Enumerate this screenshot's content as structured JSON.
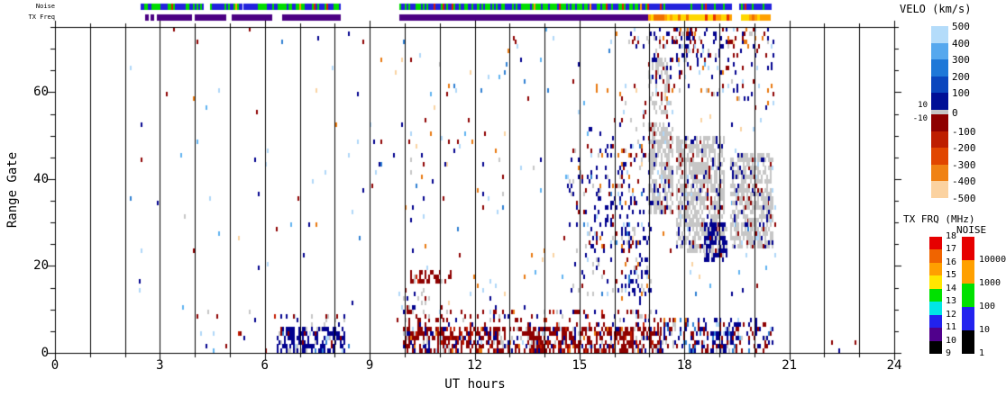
{
  "labels": {
    "noise_bar": "Noise",
    "txfreq_bar": "TX Freq",
    "y_axis": "Range Gate",
    "x_axis": "UT hours"
  },
  "chart_data": {
    "type": "heatmap",
    "xlabel": "UT hours",
    "ylabel": "Range Gate",
    "xlim": [
      0,
      24
    ],
    "ylim": [
      0,
      75
    ],
    "x_tick_values": [
      0,
      3,
      6,
      9,
      12,
      15,
      18,
      21,
      24
    ],
    "x_tick_labels": [
      "0",
      "3",
      "6",
      "9",
      "12",
      "15",
      "18",
      "21",
      "24"
    ],
    "x_minor_tick_every_hours": 1,
    "y_tick_values": [
      0,
      20,
      40,
      60
    ],
    "y_tick_labels": [
      "0",
      "20",
      "40",
      "60"
    ],
    "y_minor_tick_every_gates": 5,
    "vertical_lines_hours": [
      1,
      2,
      3,
      4,
      5,
      6,
      7,
      8,
      9,
      10,
      11,
      12,
      13,
      14,
      15,
      16,
      17,
      18,
      19,
      20,
      21,
      22,
      23
    ],
    "seed": 1337,
    "cell_colors": {
      "navy": "#00008E",
      "darkred": "#8E0000",
      "red": "#C41C00",
      "gray": "#C6C6C6",
      "lightblue": "#AFD7F8",
      "medblue": "#2E7FD2",
      "skyblue": "#5FB2F0",
      "orange": "#E8780F",
      "peach": "#FAD2A0"
    },
    "palettes": {
      "bg": [
        [
          "lightblue",
          0.22
        ],
        [
          "navy",
          0.14
        ],
        [
          "darkred",
          0.2
        ],
        [
          "medblue",
          0.12
        ],
        [
          "skyblue",
          0.08
        ],
        [
          "orange",
          0.1
        ],
        [
          "peach",
          0.09
        ],
        [
          "gray",
          0.05
        ]
      ],
      "navyDense": [
        [
          "navy",
          0.74
        ],
        [
          "darkred",
          0.08
        ],
        [
          "gray",
          0.1
        ],
        [
          "medblue",
          0.04
        ],
        [
          "lightblue",
          0.04
        ]
      ],
      "navyFringe": [
        [
          "navy",
          0.5
        ],
        [
          "gray",
          0.28
        ],
        [
          "darkred",
          0.22
        ]
      ],
      "redDense": [
        [
          "darkred",
          0.64
        ],
        [
          "navy",
          0.12
        ],
        [
          "red",
          0.09
        ],
        [
          "gray",
          0.1
        ],
        [
          "orange",
          0.03
        ],
        [
          "lightblue",
          0.02
        ]
      ],
      "redFringe": [
        [
          "darkred",
          0.52
        ],
        [
          "navy",
          0.18
        ],
        [
          "gray",
          0.16
        ],
        [
          "red",
          0.07
        ],
        [
          "orange",
          0.04
        ],
        [
          "lightblue",
          0.03
        ]
      ],
      "mixBottom": [
        [
          "navy",
          0.36
        ],
        [
          "darkred",
          0.36
        ],
        [
          "gray",
          0.12
        ],
        [
          "lightblue",
          0.06
        ],
        [
          "medblue",
          0.05
        ],
        [
          "orange",
          0.03
        ],
        [
          "skyblue",
          0.02
        ]
      ],
      "redStreak": [
        [
          "darkred",
          0.78
        ],
        [
          "red",
          0.12
        ],
        [
          "gray",
          0.1
        ]
      ],
      "grayRed": [
        [
          "gray",
          0.5
        ],
        [
          "darkred",
          0.33
        ],
        [
          "navy",
          0.17
        ]
      ],
      "midScatter": [
        [
          "navy",
          0.52
        ],
        [
          "darkred",
          0.17
        ],
        [
          "gray",
          0.17
        ],
        [
          "orange",
          0.05
        ],
        [
          "lightblue",
          0.04
        ],
        [
          "medblue",
          0.05
        ]
      ],
      "grayBlob": [
        [
          "gray",
          0.82
        ],
        [
          "navy",
          0.1
        ],
        [
          "darkred",
          0.06
        ],
        [
          "lightblue",
          0.02
        ]
      ],
      "navyBlob": [
        [
          "navy",
          0.84
        ],
        [
          "gray",
          0.08
        ],
        [
          "darkred",
          0.05
        ],
        [
          "medblue",
          0.03
        ]
      ],
      "topSpecks": [
        [
          "navy",
          0.4
        ],
        [
          "darkred",
          0.28
        ],
        [
          "gray",
          0.14
        ],
        [
          "orange",
          0.1
        ],
        [
          "lightblue",
          0.08
        ]
      ]
    },
    "regions": [
      [
        2.1,
        9.9,
        0,
        75,
        0.006,
        "bg"
      ],
      [
        9.9,
        20.6,
        10,
        75,
        0.014,
        "bg"
      ],
      [
        20.6,
        23.4,
        0,
        3,
        0.02,
        "mixBottom"
      ],
      [
        4.3,
        6.3,
        0,
        10,
        0.05,
        "redFringe"
      ],
      [
        6.35,
        8.3,
        0,
        6,
        0.55,
        "navyDense"
      ],
      [
        6.35,
        8.3,
        6,
        9,
        0.14,
        "navyFringe"
      ],
      [
        9.95,
        17.3,
        0,
        6,
        0.62,
        "redDense"
      ],
      [
        9.95,
        17.3,
        6,
        10,
        0.22,
        "redFringe"
      ],
      [
        17.3,
        20.55,
        0,
        8,
        0.36,
        "mixBottom"
      ],
      [
        18.8,
        19.4,
        0,
        6,
        0.45,
        "navyDense"
      ],
      [
        9.95,
        10.6,
        9,
        15,
        0.25,
        "grayRed"
      ],
      [
        10.1,
        11.4,
        16,
        19,
        0.42,
        "redStreak"
      ],
      [
        10.0,
        11.6,
        25,
        46,
        0.03,
        "midScatter"
      ],
      [
        14.7,
        17.05,
        13,
        48,
        0.09,
        "midScatter"
      ],
      [
        15.3,
        16.7,
        20,
        42,
        0.13,
        "midScatter"
      ],
      [
        16.2,
        17.05,
        11,
        30,
        0.2,
        "midScatter"
      ],
      [
        15.2,
        16.9,
        44,
        62,
        0.05,
        "topSpecks"
      ],
      [
        16.95,
        17.65,
        32,
        53,
        0.7,
        "grayBlob"
      ],
      [
        16.95,
        17.6,
        55,
        68,
        0.38,
        "grayBlob"
      ],
      [
        17.75,
        19.15,
        23,
        50,
        0.66,
        "grayBlob"
      ],
      [
        19.3,
        20.55,
        24,
        46,
        0.68,
        "grayBlob"
      ],
      [
        18.55,
        19.2,
        21,
        30,
        0.55,
        "navyBlob"
      ],
      [
        16.9,
        20.55,
        58,
        75,
        0.1,
        "topSpecks"
      ],
      [
        16.4,
        20.2,
        70,
        75,
        0.2,
        "topSpecks"
      ],
      [
        17.75,
        18.35,
        66,
        75,
        0.3,
        "topSpecks"
      ]
    ]
  },
  "noise_strip": {
    "colors": {
      "green": "#00DC00",
      "blue": "#2222DC",
      "red": "#DC1E00",
      "orange": "#FF9B00",
      "yellow": "#FFE100"
    },
    "palettes": {
      "nbL": [
        [
          "blue",
          0.5
        ],
        [
          "green",
          0.38
        ],
        [
          "red",
          0.05
        ],
        [
          "orange",
          0.04
        ],
        [
          "yellow",
          0.03
        ]
      ],
      "nbG": [
        [
          "green",
          0.58
        ],
        [
          "blue",
          0.36
        ],
        [
          "red",
          0.03
        ],
        [
          "orange",
          0.03
        ]
      ],
      "nbB": [
        [
          "blue",
          0.78
        ],
        [
          "green",
          0.16
        ],
        [
          "orange",
          0.03
        ],
        [
          "red",
          0.03
        ]
      ]
    },
    "segments": [
      [
        156,
        226,
        "nbL"
      ],
      [
        233,
        268,
        "nbL"
      ],
      [
        270,
        378,
        "nbL"
      ],
      [
        443,
        530,
        "nbL"
      ],
      [
        530,
        718,
        "nbG"
      ],
      [
        718,
        812,
        "nbB"
      ],
      [
        820,
        855,
        "nbB"
      ]
    ]
  },
  "txfreq_strip": {
    "purple": "#4B0082",
    "purple_segments": [
      [
        161,
        165
      ],
      [
        167,
        171
      ],
      [
        174,
        213
      ],
      [
        216,
        251
      ],
      [
        257,
        302
      ],
      [
        313,
        378
      ],
      [
        443,
        719
      ]
    ],
    "mix_colors": {
      "yellow": "#FFD700",
      "orange": "#FFA000",
      "orange2": "#F07000",
      "red": "#E63000"
    },
    "mix_palette": [
      [
        "yellow",
        0.42
      ],
      [
        "orange",
        0.34
      ],
      [
        "orange2",
        0.16
      ],
      [
        "red",
        0.08
      ]
    ],
    "mix_segments": [
      [
        719,
        812
      ],
      [
        822,
        855
      ]
    ]
  },
  "velo_bar": {
    "title": "VELO (km/s)",
    "labels_right": [
      "500",
      "400",
      "300",
      "200",
      "100",
      "0",
      "-100",
      "-200",
      "-300",
      "-400",
      "-500"
    ],
    "labels_left": [
      "10",
      "-10"
    ],
    "colors_top": [
      "#B4DCFA",
      "#56A8EE",
      "#1E78D8",
      "#0A46BE",
      "#000F96"
    ],
    "gray": "#C6C6C6",
    "colors_bottom": [
      "#8E0000",
      "#BE1E00",
      "#E14600",
      "#F08214",
      "#FBD2A0"
    ]
  },
  "txfrq_bar": {
    "title": "TX FRQ (MHz)",
    "labels": [
      "18",
      "17",
      "16",
      "15",
      "14",
      "13",
      "12",
      "11",
      "10",
      "9"
    ],
    "colors": [
      "#E60000",
      "#F06400",
      "#FFA000",
      "#FFE600",
      "#00E100",
      "#00E6E6",
      "#2222EE",
      "#50008C",
      "#000000"
    ]
  },
  "noise_cbar": {
    "title": "NOISE",
    "labels": [
      "10000",
      "1000",
      "100",
      "10",
      "1"
    ],
    "colors": [
      "#E60000",
      "#FFA000",
      "#00E100",
      "#2222EE",
      "#000000"
    ]
  }
}
